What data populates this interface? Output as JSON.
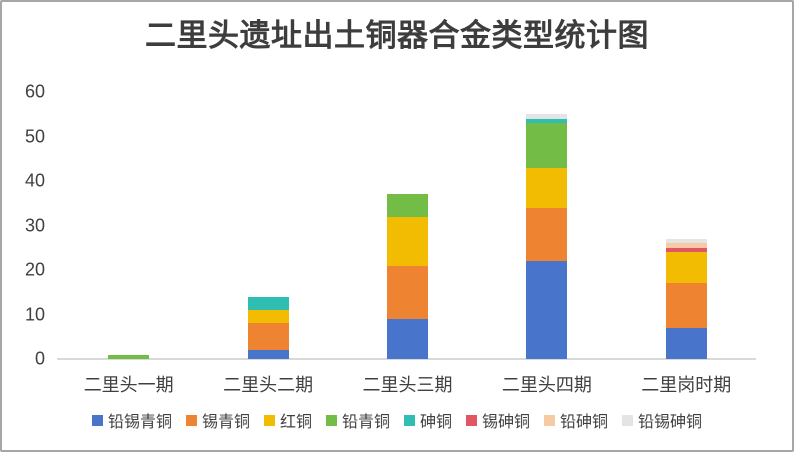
{
  "frame": {
    "background": "#ffffff",
    "border_color": "#a6a6a6"
  },
  "chart_data": {
    "type": "bar",
    "stacked": true,
    "title": "二里头遗址出土铜器合金类型统计图",
    "categories": [
      "二里头一期",
      "二里头二期",
      "二里头三期",
      "二里头四期",
      "二里岗时期"
    ],
    "series": [
      {
        "name": "铅锡青铜",
        "color": "#4874CC",
        "values": [
          0,
          2,
          9,
          22,
          7
        ]
      },
      {
        "name": "锡青铜",
        "color": "#EE8331",
        "values": [
          0,
          6,
          12,
          12,
          10
        ]
      },
      {
        "name": "红铜",
        "color": "#F2BC02",
        "values": [
          0,
          3,
          11,
          9,
          7
        ]
      },
      {
        "name": "铅青铜",
        "color": "#73BC45",
        "values": [
          1,
          0,
          5,
          10,
          0
        ]
      },
      {
        "name": "砷铜",
        "color": "#2EBFB2",
        "values": [
          0,
          3,
          0,
          1,
          0
        ]
      },
      {
        "name": "锡砷铜",
        "color": "#E25565",
        "values": [
          0,
          0,
          0,
          0,
          1
        ]
      },
      {
        "name": "铅砷铜",
        "color": "#F6CBA4",
        "values": [
          0,
          0,
          0,
          0,
          1
        ]
      },
      {
        "name": "铅锡砷铜",
        "color": "#E5E4E4",
        "values": [
          0,
          0,
          0,
          1,
          1
        ]
      }
    ],
    "xlabel": "",
    "ylabel": "",
    "ylim": [
      0,
      60
    ],
    "yticks": [
      0,
      10,
      20,
      30,
      40,
      50,
      60
    ],
    "grid": false,
    "legend_position": "bottom",
    "axis_line_color": "#D9D9D9",
    "text_color": "#404040"
  }
}
